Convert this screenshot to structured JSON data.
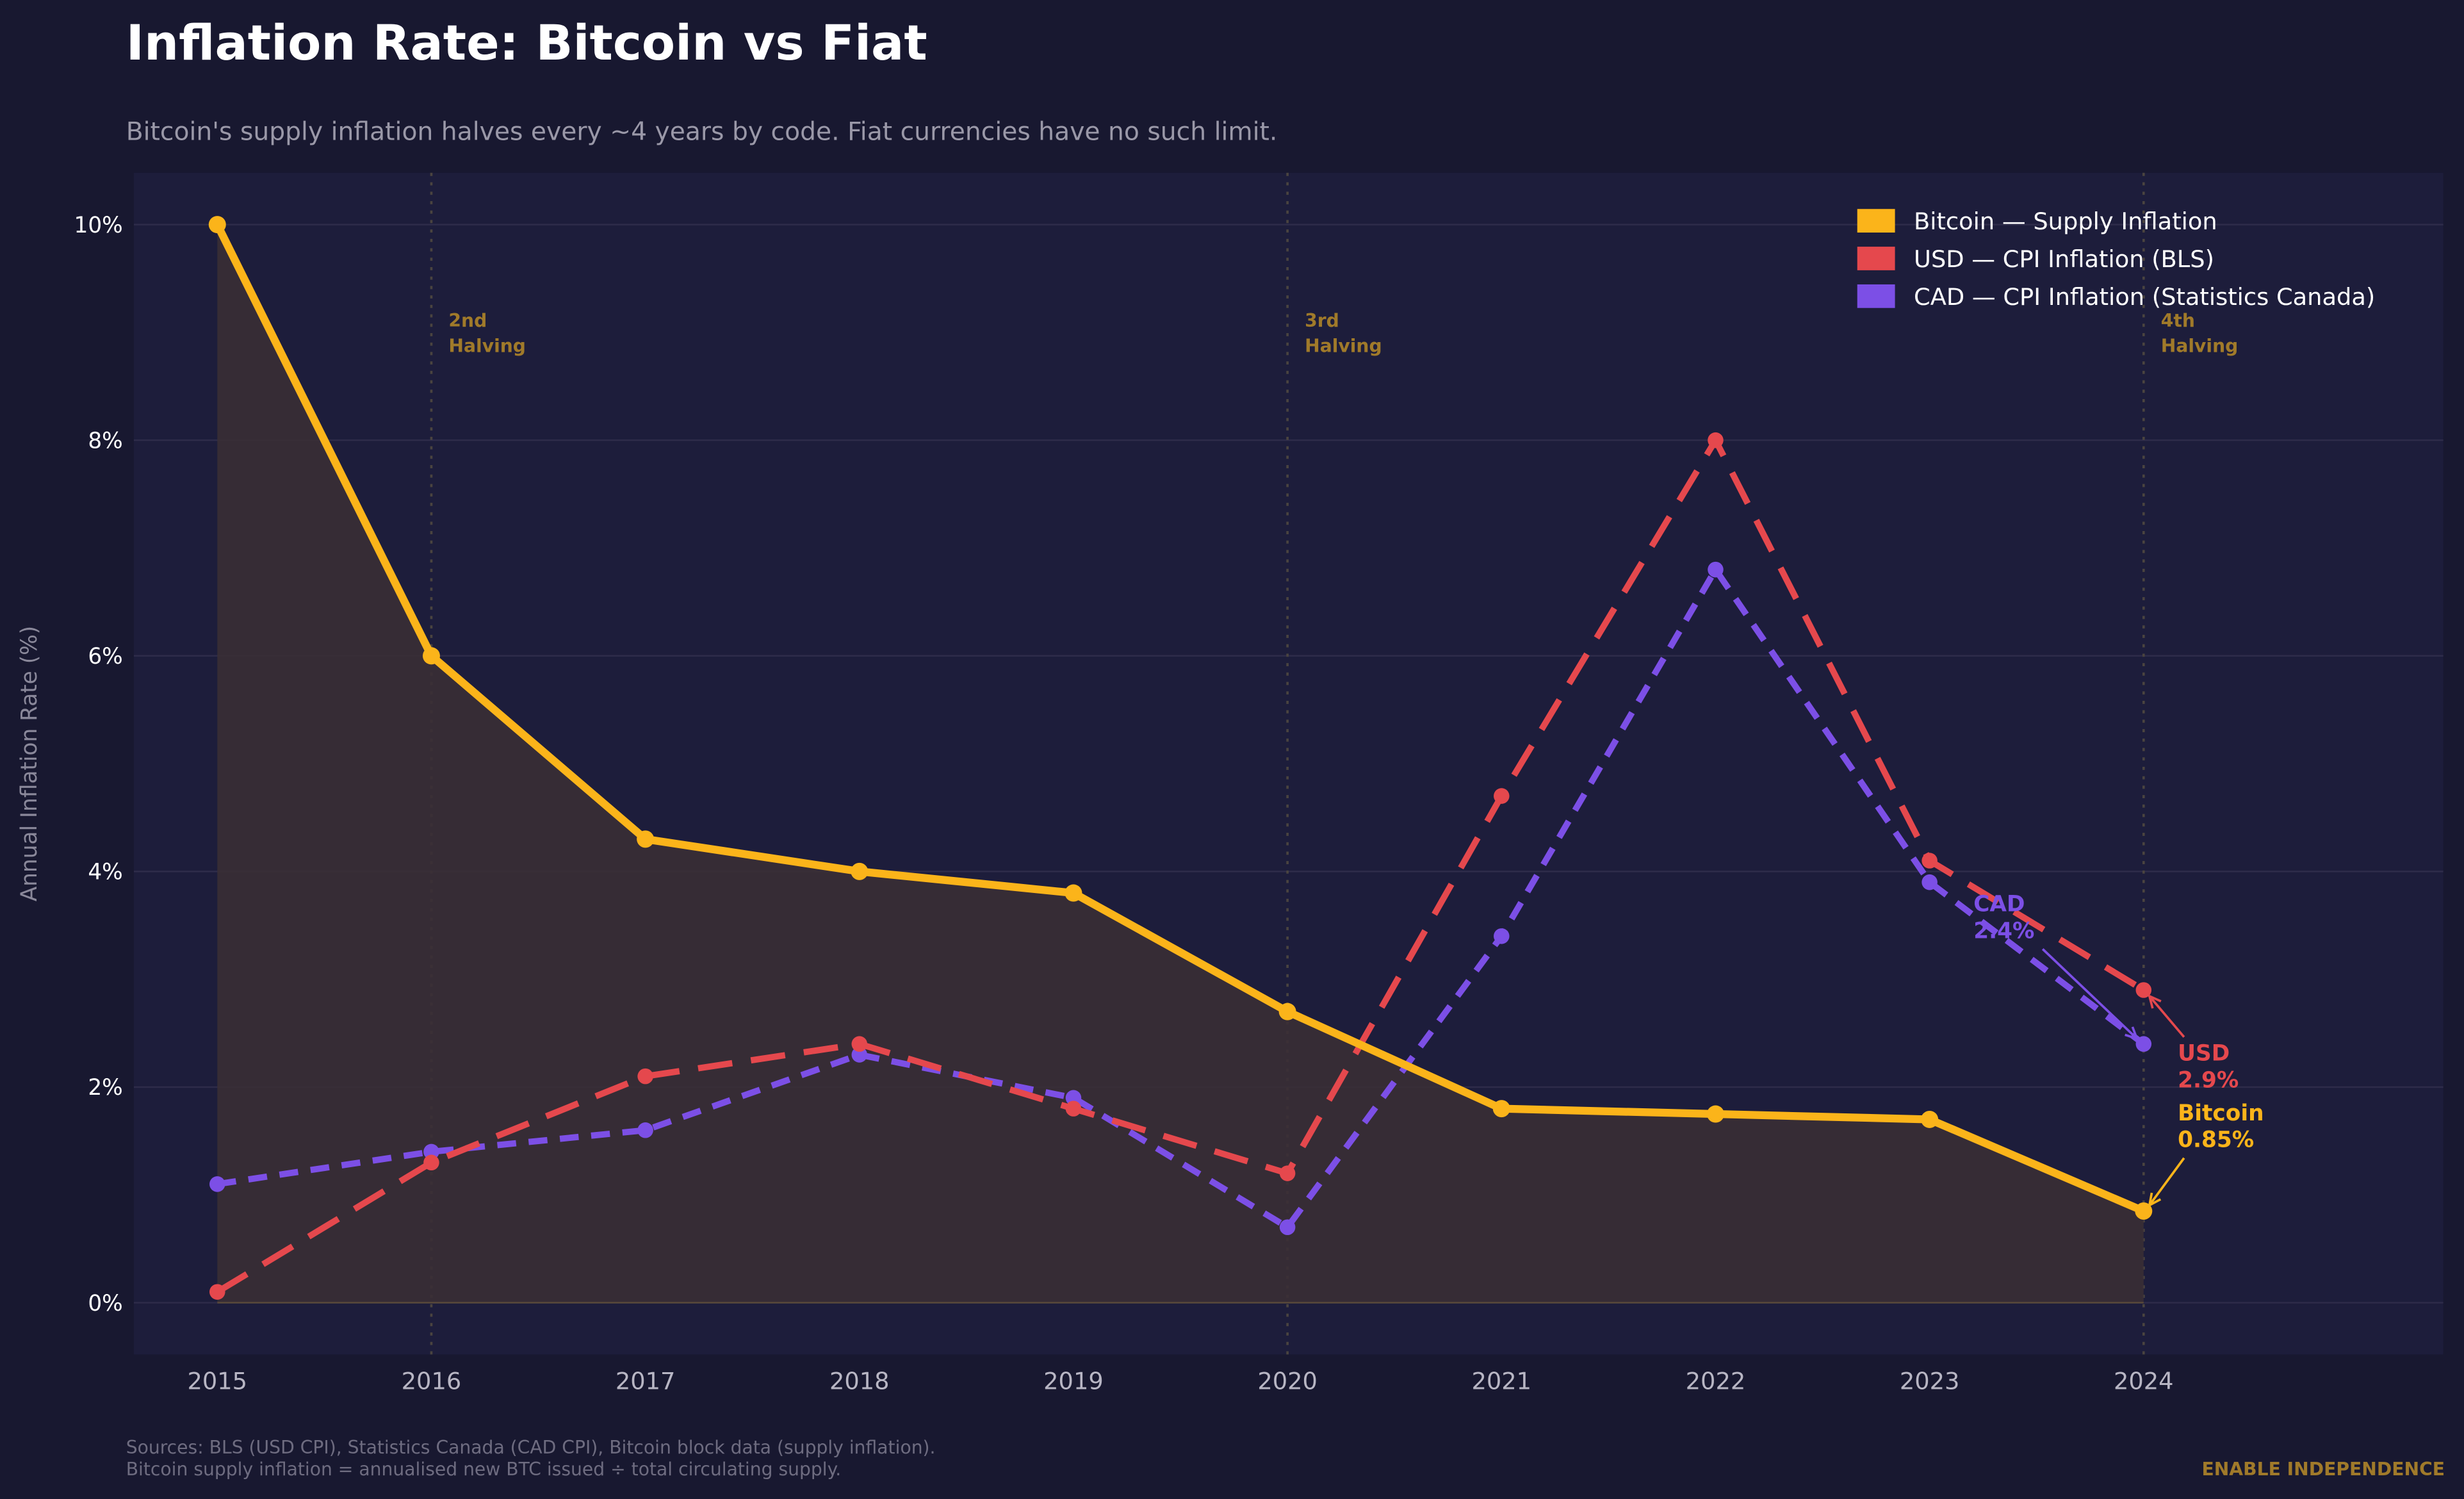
{
  "title": "Inflation Rate: Bitcoin vs Fiat",
  "subtitle": "Bitcoin's supply inflation halves every ~4 years by code. Fiat currencies have no such limit.",
  "footer": {
    "sources_line1": "Sources: BLS (USD CPI), Statistics Canada (CAD CPI), Bitcoin block data (supply inflation).",
    "sources_line2": "Bitcoin supply inflation = annualised new BTC issued ÷ total circulating supply.",
    "brand": "ENABLE INDEPENDENCE"
  },
  "colors": {
    "background": "#181830",
    "plot_background": "#1d1d3b",
    "bitcoin": "#fbb41a",
    "usd": "#e5484d",
    "cad": "#7c4fe6",
    "halving": "#a07a2a"
  },
  "chart_data": {
    "type": "line",
    "title": "Inflation Rate: Bitcoin vs Fiat",
    "ylabel": "Annual Inflation Rate (%)",
    "xlabel": "",
    "x": [
      2015,
      2016,
      2017,
      2018,
      2019,
      2020,
      2021,
      2022,
      2023,
      2024
    ],
    "xticks": [
      "2015",
      "2016",
      "2017",
      "2018",
      "2019",
      "2020",
      "2021",
      "2022",
      "2023",
      "2024"
    ],
    "yticks": [
      "0%",
      "2%",
      "4%",
      "6%",
      "8%",
      "10%"
    ],
    "ytick_values": [
      0,
      2,
      4,
      6,
      8,
      10
    ],
    "xlim": [
      2014.61,
      2025.4
    ],
    "ylim": [
      -0.48,
      10.48
    ],
    "grid": "horizontal",
    "legend_placement": "top-right",
    "series": [
      {
        "name": "Bitcoin — Supply Inflation",
        "style": "solid, filled",
        "values": [
          10,
          6,
          4.3,
          4.0,
          3.8,
          2.7,
          1.8,
          1.75,
          1.7,
          0.85
        ]
      },
      {
        "name": "USD — CPI Inflation (BLS)",
        "style": "dashed",
        "values": [
          0.1,
          1.3,
          2.1,
          2.4,
          1.8,
          1.2,
          4.7,
          8.0,
          4.1,
          2.9
        ]
      },
      {
        "name": "CAD — CPI Inflation (Statistics Canada)",
        "style": "dotted-dash",
        "values": [
          1.1,
          1.4,
          1.6,
          2.3,
          1.9,
          0.7,
          3.4,
          6.8,
          3.9,
          2.4
        ]
      }
    ],
    "halvings": [
      {
        "year": 2016,
        "line1": "2nd",
        "line2": "Halving"
      },
      {
        "year": 2020,
        "line1": "3rd",
        "line2": "Halving"
      },
      {
        "year": 2024,
        "line1": "4th",
        "line2": "Halving"
      }
    ],
    "annotations": [
      {
        "series": 2,
        "line1": "CAD",
        "line2": "2.4%"
      },
      {
        "series": 1,
        "line1": "USD",
        "line2": "2.9%"
      },
      {
        "series": 0,
        "line1": "Bitcoin",
        "line2": "0.85%"
      }
    ]
  }
}
